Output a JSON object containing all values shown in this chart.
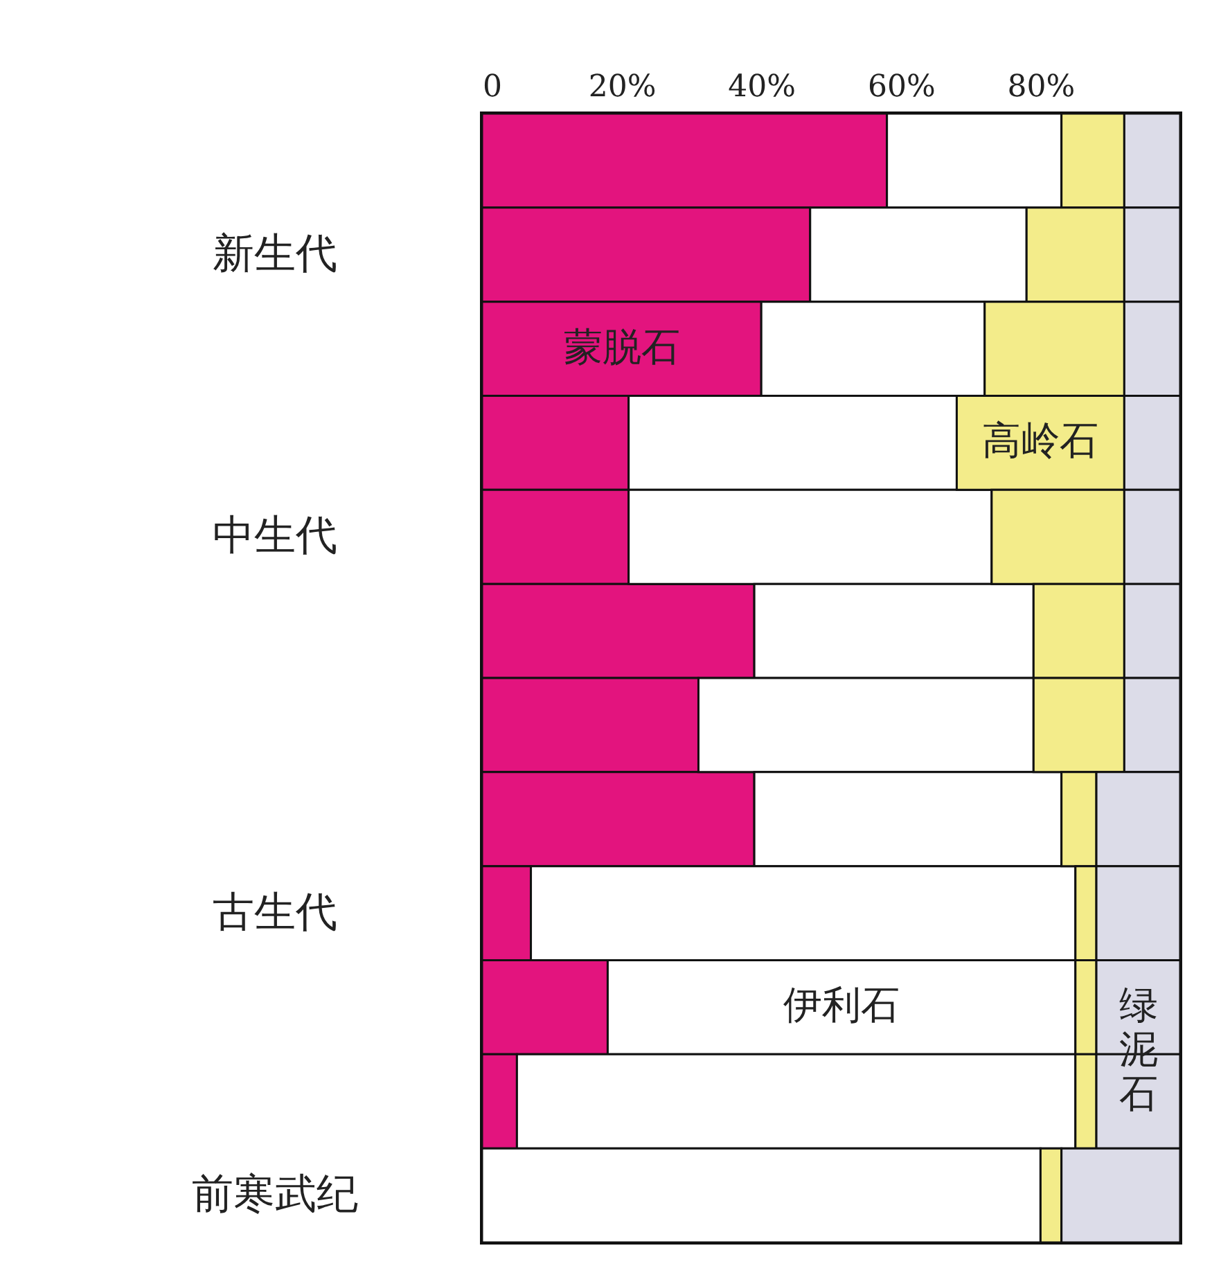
{
  "chart_data": {
    "type": "bar",
    "orientation": "horizontal",
    "stacked": true,
    "categories": [
      null,
      "新生代",
      null,
      null,
      "中生代",
      null,
      null,
      null,
      "古生代",
      null,
      null,
      "前寒武纪"
    ],
    "xlim": [
      0,
      100
    ],
    "xticks": [
      {
        "value": 0,
        "label": "0"
      },
      {
        "value": 20,
        "label": "20%"
      },
      {
        "value": 40,
        "label": "40%"
      },
      {
        "value": 60,
        "label": "60%"
      },
      {
        "value": 80,
        "label": "80%"
      }
    ],
    "series": [
      {
        "name": "蒙脱石",
        "color": "#e3147e",
        "values": [
          58,
          47,
          40,
          21,
          21,
          39,
          31,
          39,
          7,
          18,
          5,
          0
        ]
      },
      {
        "name": "伊利石",
        "color": "#ffffff",
        "values": [
          25,
          31,
          32,
          47,
          52,
          40,
          48,
          44,
          78,
          67,
          80,
          80
        ]
      },
      {
        "name": "高岭石",
        "color": "#f3ec8a",
        "values": [
          9,
          14,
          20,
          24,
          19,
          13,
          13,
          5,
          3,
          3,
          3,
          3
        ]
      },
      {
        "name": "绿泥石",
        "color": "#dcdce8",
        "values": [
          8,
          8,
          8,
          8,
          8,
          8,
          8,
          12,
          12,
          12,
          12,
          17
        ]
      }
    ]
  }
}
